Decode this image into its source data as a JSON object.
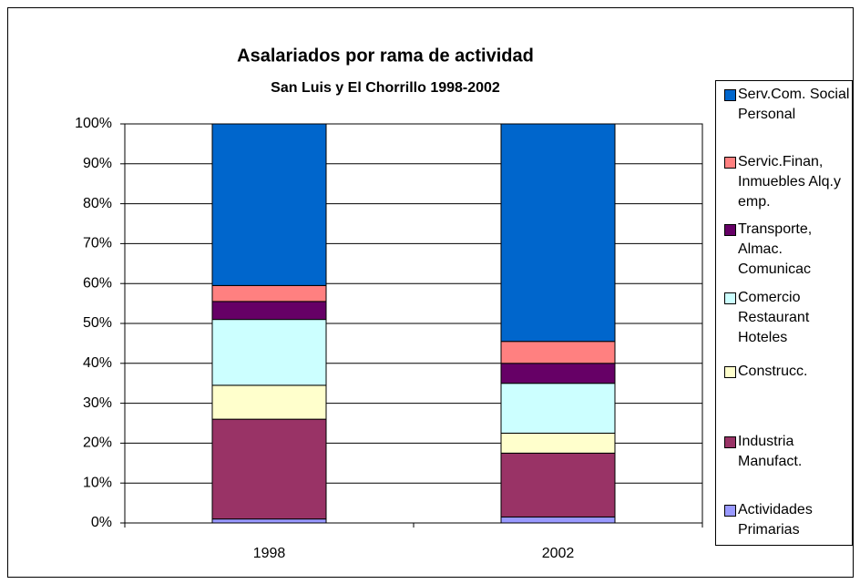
{
  "chart_data": {
    "type": "bar",
    "stacked": true,
    "title": "Asalariados por rama de actividad",
    "subtitle": "San Luis y El Chorrillo  1998-2002",
    "categories": [
      "1998",
      "2002"
    ],
    "series": [
      {
        "name": "Actividades Primarias",
        "color": "#9999ff",
        "values": [
          1,
          1.5
        ]
      },
      {
        "name": "Industria Manufact.",
        "color": "#993366",
        "values": [
          25,
          16
        ]
      },
      {
        "name": "Construcc.",
        "color": "#ffffcc",
        "values": [
          8.5,
          5
        ]
      },
      {
        "name": "Comercio Restaurant Hoteles",
        "color": "#ccffff",
        "values": [
          16.5,
          12.5
        ]
      },
      {
        "name": "Transporte, Almac. Comunicac",
        "color": "#660066",
        "values": [
          4.5,
          5
        ]
      },
      {
        "name": "Servic.Finan, Inmuebles Alq.y emp.",
        "color": "#ff8080",
        "values": [
          4,
          5.5
        ]
      },
      {
        "name": "Serv.Com. Social Personal",
        "color": "#0066cc",
        "values": [
          40.5,
          54.5
        ]
      }
    ],
    "ylim": [
      0,
      100
    ],
    "yticks": [
      {
        "value": 0,
        "label": "0%"
      },
      {
        "value": 10,
        "label": "10%"
      },
      {
        "value": 20,
        "label": "20%"
      },
      {
        "value": 30,
        "label": "30%"
      },
      {
        "value": 40,
        "label": "40%"
      },
      {
        "value": 50,
        "label": "50%"
      },
      {
        "value": 60,
        "label": "60%"
      },
      {
        "value": 70,
        "label": "70%"
      },
      {
        "value": 80,
        "label": "80%"
      },
      {
        "value": 90,
        "label": "90%"
      },
      {
        "value": 100,
        "label": "100%"
      }
    ],
    "grid": true,
    "legend": "right"
  }
}
